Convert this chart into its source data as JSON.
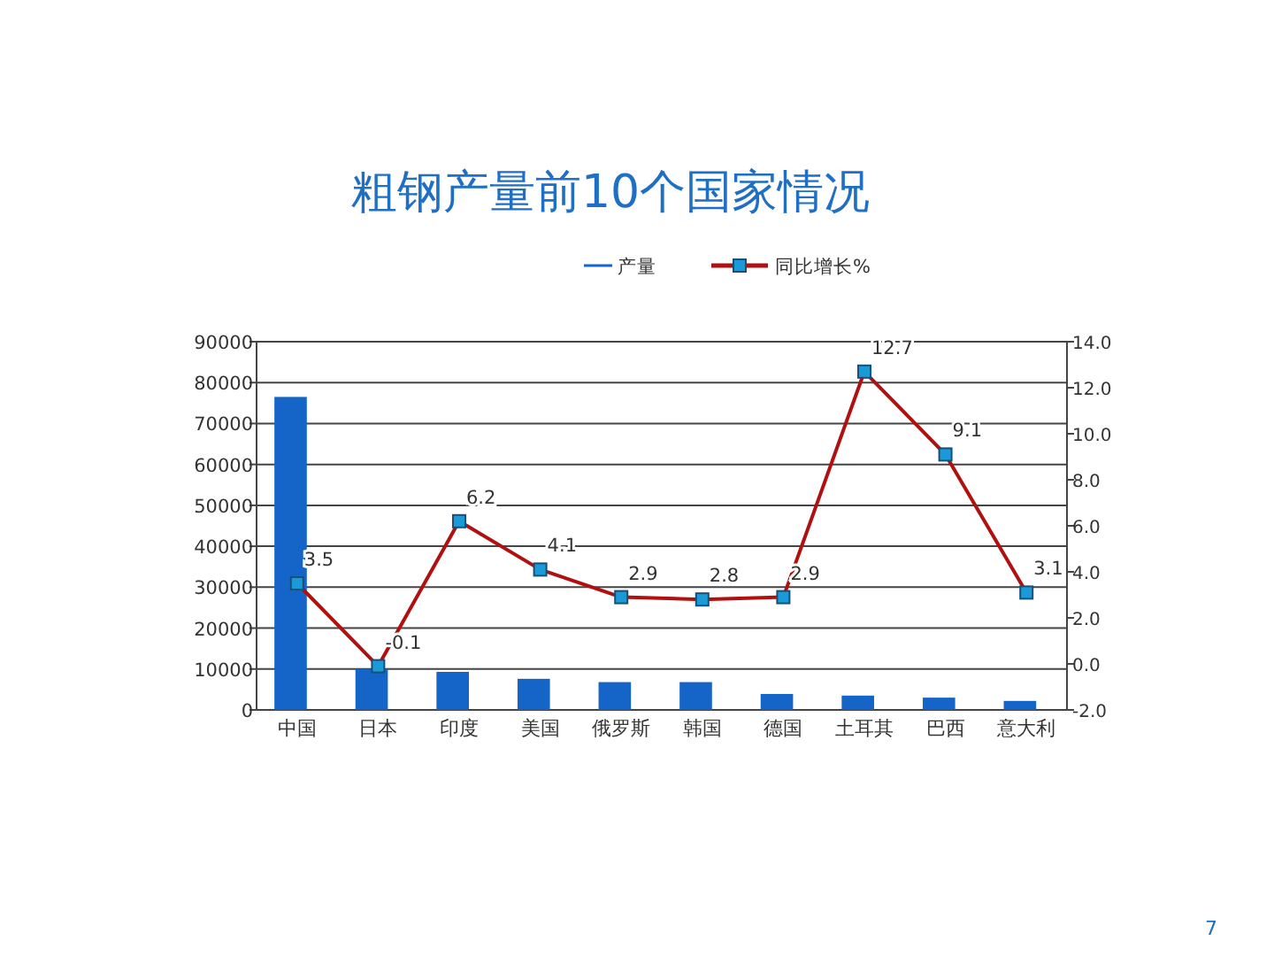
{
  "chart_data": {
    "type": "bar",
    "title": "粗钢产量前10个国家情况",
    "categories": [
      "中国",
      "日本",
      "印度",
      "美国",
      "俄罗斯",
      "韩国",
      "德国",
      "土耳其",
      "巴西",
      "意大利"
    ],
    "series": [
      {
        "name": "产量",
        "color": "#1565c8",
        "values": [
          76500,
          10000,
          9300,
          7600,
          6800,
          6800,
          3900,
          3500,
          3000,
          2200
        ]
      },
      {
        "name": "同比增长%",
        "type": "line",
        "axis": "y2",
        "color": "#b01010",
        "marker": "square",
        "data_labels": true,
        "values": [
          3.5,
          -0.1,
          6.2,
          4.1,
          2.9,
          2.8,
          2.9,
          12.7,
          9.1,
          3.1
        ]
      }
    ],
    "ylim": [
      0,
      90000
    ],
    "yticks": [
      0,
      10000,
      20000,
      30000,
      40000,
      50000,
      60000,
      70000,
      80000,
      90000
    ],
    "y2lim": [
      -2,
      14
    ],
    "y2ticks": [
      {
        "value": 14,
        "label": "14.0"
      },
      {
        "value": 12,
        "label": "12.0"
      },
      {
        "value": 10,
        "label": "10.0"
      },
      {
        "value": 8,
        "label": "8.0"
      },
      {
        "value": 6,
        "label": "6.0"
      },
      {
        "value": 4,
        "label": "4.0"
      },
      {
        "value": 2,
        "label": "2.0"
      },
      {
        "value": 0,
        "label": "0.0"
      },
      {
        "value": -2,
        "label": "-2.0"
      }
    ],
    "grid": "y",
    "legend": "top",
    "annotations": [
      "7"
    ]
  }
}
